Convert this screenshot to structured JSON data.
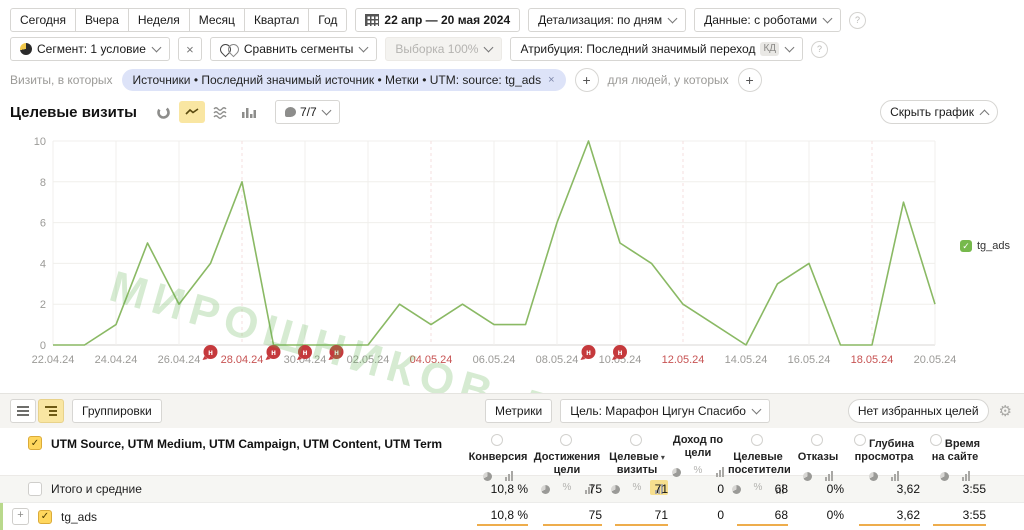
{
  "toolbar": {
    "periods": [
      "Сегодня",
      "Вчера",
      "Неделя",
      "Месяц",
      "Квартал",
      "Год"
    ],
    "date_range": "22 апр — 20 мая 2024",
    "detail": "Детализация: по дням",
    "data_mode": "Данные: с роботами"
  },
  "segment_bar": {
    "segment": "Сегмент: 1 условие",
    "close": "×",
    "compare": "Сравнить сегменты",
    "sampling": "Выборка 100%",
    "attribution": "Атрибуция: Последний значимый переход",
    "attribution_badge": "КД"
  },
  "filter_bar": {
    "visits_label": "Визиты, в которых",
    "chip": "Источники • Последний значимый источник • Метки • UTM: source: tg_ads",
    "chip_close": "×",
    "people_label": "для людей, у которых"
  },
  "chart_section": {
    "title": "Целевые визиты",
    "notes_badge": "7/7",
    "hide_chart": "Скрыть график"
  },
  "chart_data": {
    "type": "line",
    "title": "Целевые визиты",
    "series": [
      {
        "name": "tg_ads",
        "color": "#8ab964"
      }
    ],
    "dates": [
      "22.04.24",
      "23.04.24",
      "24.04.24",
      "25.04.24",
      "26.04.24",
      "27.04.24",
      "28.04.24",
      "29.04.24",
      "30.04.24",
      "01.05.24",
      "02.05.24",
      "03.05.24",
      "04.05.24",
      "05.05.24",
      "06.05.24",
      "07.05.24",
      "08.05.24",
      "09.05.24",
      "10.05.24",
      "11.05.24",
      "12.05.24",
      "13.05.24",
      "14.05.24",
      "15.05.24",
      "16.05.24",
      "17.05.24",
      "18.05.24",
      "19.05.24",
      "20.05.24"
    ],
    "values": [
      0,
      0,
      1,
      5,
      2,
      4,
      8,
      0,
      0,
      0,
      0,
      2,
      1,
      2,
      1,
      1,
      6,
      10,
      5,
      4,
      2,
      1,
      0,
      3,
      4,
      0,
      0,
      7,
      2
    ],
    "ylim": [
      0,
      10
    ],
    "yticks": [
      0,
      2,
      4,
      6,
      8,
      10
    ],
    "tick_every": 2,
    "red_dates": [
      "28.04.24",
      "04.05.24",
      "12.05.24",
      "18.05.24"
    ],
    "markers": [
      {
        "date": "27.04.24"
      },
      {
        "date": "29.04.24"
      },
      {
        "date": "30.04.24"
      },
      {
        "date": "01.05.24"
      },
      {
        "date": "09.05.24"
      },
      {
        "date": "10.05.24"
      }
    ],
    "marker_label": "н",
    "legend_label": "tg_ads",
    "grid": true,
    "legend_position": "right"
  },
  "watermark": "МИРОШНИКОВ-ДАНИЛОВ",
  "table": {
    "toolbar": {
      "groupings": "Группировки",
      "metrics": "Метрики",
      "goal": "Цель: Марафон Цигун Спасибо",
      "no_goals": "Нет избранных целей"
    },
    "dimension_header": "UTM Source, UTM Medium, UTM Campaign, UTM Content, UTM Term",
    "sort_glyph": "▾",
    "columns": [
      {
        "lines": [
          "Конверсия"
        ],
        "help": true,
        "sorted": false,
        "icons": [
          "pie",
          "bars"
        ],
        "selected_icon": ""
      },
      {
        "lines": [
          "Достижения",
          "цели"
        ],
        "help": true,
        "sorted": false,
        "icons": [
          "pie",
          "percent",
          "bars"
        ],
        "selected_icon": ""
      },
      {
        "lines": [
          "Целевые",
          "визиты"
        ],
        "help": true,
        "sorted": true,
        "icons": [
          "pie",
          "percent",
          "bars"
        ],
        "selected_icon": "bars"
      },
      {
        "lines": [
          "Доход по",
          "цели"
        ],
        "help": false,
        "sorted": false,
        "icons": [
          "pie",
          "percent",
          "bars"
        ],
        "selected_icon": ""
      },
      {
        "lines": [
          "Целевые",
          "посетители"
        ],
        "help": true,
        "sorted": false,
        "icons": [
          "pie",
          "percent",
          "bars"
        ],
        "selected_icon": ""
      },
      {
        "lines": [
          "Отказы"
        ],
        "help": true,
        "sorted": false,
        "icons": [
          "pie",
          "bars"
        ],
        "selected_icon": ""
      },
      {
        "lines": [
          "Глубина",
          "просмотра"
        ],
        "help": true,
        "sorted": false,
        "icons": [
          "pie",
          "bars"
        ],
        "selected_icon": ""
      },
      {
        "lines": [
          "Время",
          "на сайте"
        ],
        "help": true,
        "sorted": false,
        "icons": [
          "pie",
          "bars"
        ],
        "selected_icon": ""
      }
    ],
    "rows": [
      {
        "label": "Итого и средние",
        "type": "total",
        "values": [
          "10,8 %",
          "75",
          "71",
          "0",
          "68",
          "0%",
          "3,62",
          "3:55"
        ],
        "bars": [
          false,
          false,
          false,
          false,
          false,
          false,
          false,
          false
        ]
      },
      {
        "label": "tg_ads",
        "type": "data",
        "values": [
          "10,8 %",
          "75",
          "71",
          "0",
          "68",
          "0%",
          "3,62",
          "3:55"
        ],
        "bars": [
          true,
          true,
          true,
          false,
          true,
          false,
          true,
          true
        ]
      }
    ]
  }
}
